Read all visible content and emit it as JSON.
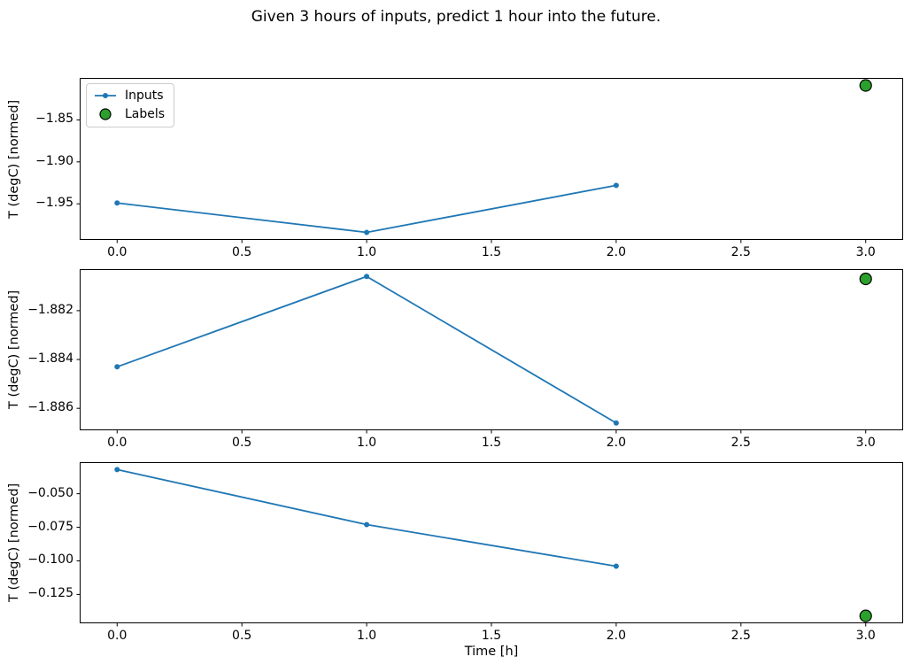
{
  "chart_data": {
    "type": "line",
    "title": "Given 3 hours of inputs, predict 1 hour into the future.",
    "xlabel": "Time [h]",
    "xlim": [
      -0.15,
      3.15
    ],
    "x_ticks": {
      "values": [
        0.0,
        0.5,
        1.0,
        1.5,
        2.0,
        2.5,
        3.0
      ],
      "labels": [
        "0.0",
        "0.5",
        "1.0",
        "1.5",
        "2.0",
        "2.5",
        "3.0"
      ]
    },
    "legend": [
      {
        "label": "Inputs",
        "marker": "line-dot",
        "color": "#1f77b4"
      },
      {
        "label": "Labels",
        "marker": "circle",
        "color": "#2ca02c",
        "edge": "#000000"
      }
    ],
    "colors": {
      "inputs_line": "#1f77b4",
      "labels_fill": "#2ca02c",
      "labels_edge": "#000000",
      "spine": "#000000"
    },
    "legend_position": "upper-left-first-subplot",
    "grid": false,
    "subplots": [
      {
        "ylabel": "T (degC) [normed]",
        "ylim": [
          -1.993,
          -1.8
        ],
        "y_ticks": {
          "values": [
            -1.85,
            -1.9,
            -1.95
          ],
          "labels": [
            "−1.85",
            "−1.90",
            "−1.95"
          ]
        },
        "series": [
          {
            "name": "Inputs",
            "x": [
              0,
              1,
              2
            ],
            "y": [
              -1.949,
              -1.984,
              -1.928
            ]
          },
          {
            "name": "Labels",
            "x": [
              3
            ],
            "y": [
              -1.809
            ]
          }
        ]
      },
      {
        "ylabel": "T (degC) [normed]",
        "ylim": [
          -1.8869,
          -1.8803
        ],
        "y_ticks": {
          "values": [
            -1.882,
            -1.884,
            -1.886
          ],
          "labels": [
            "−1.882",
            "−1.884",
            "−1.886"
          ]
        },
        "series": [
          {
            "name": "Inputs",
            "x": [
              0,
              1,
              2
            ],
            "y": [
              -1.8843,
              -1.8806,
              -1.8866
            ]
          },
          {
            "name": "Labels",
            "x": [
              3
            ],
            "y": [
              -1.8807
            ]
          }
        ]
      },
      {
        "ylabel": "T (degC) [normed]",
        "ylim": [
          -0.1465,
          -0.0265
        ],
        "y_ticks": {
          "values": [
            -0.05,
            -0.075,
            -0.1,
            -0.125
          ],
          "labels": [
            "−0.050",
            "−0.075",
            "−0.100",
            "−0.125"
          ]
        },
        "series": [
          {
            "name": "Inputs",
            "x": [
              0,
              1,
              2
            ],
            "y": [
              -0.032,
              -0.073,
              -0.104
            ]
          },
          {
            "name": "Labels",
            "x": [
              3
            ],
            "y": [
              -0.141
            ]
          }
        ]
      }
    ],
    "layout": {
      "subplot_tops": [
        88,
        304,
        522
      ],
      "subplot_heights": [
        183,
        182,
        182
      ]
    }
  }
}
